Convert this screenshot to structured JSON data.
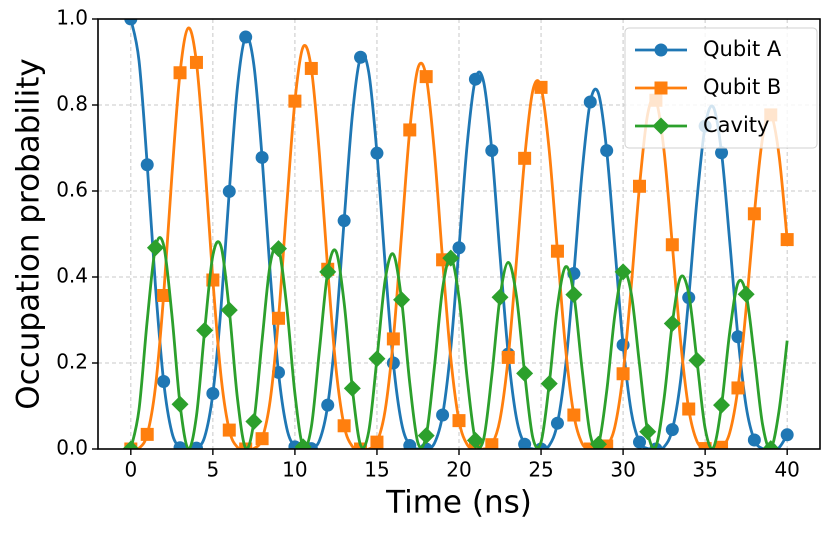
{
  "chart_data": {
    "type": "line",
    "xlabel": "Time (ns)",
    "ylabel": "Occupation probability",
    "xlim": [
      -2,
      42
    ],
    "ylim": [
      0,
      1
    ],
    "xticks": [
      0,
      5,
      10,
      15,
      20,
      25,
      30,
      35,
      40
    ],
    "yticks": [
      {
        "value": 0,
        "label": "0.0"
      },
      0.2,
      0.4,
      0.6,
      0.8,
      {
        "value": 1,
        "label": "1.0"
      }
    ],
    "grid": true,
    "legend": "upper right",
    "x": [
      0,
      0.5,
      1,
      1.5,
      2,
      2.5,
      3,
      3.5,
      4,
      4.5,
      5,
      5.5,
      6,
      6.5,
      7,
      7.5,
      8,
      8.5,
      9,
      9.5,
      10,
      10.5,
      11,
      11.5,
      12,
      12.5,
      13,
      13.5,
      14,
      14.5,
      15,
      15.5,
      16,
      16.5,
      17,
      17.5,
      18,
      18.5,
      19,
      19.5,
      20,
      20.5,
      21,
      21.5,
      22,
      22.5,
      23,
      23.5,
      24,
      24.5,
      25,
      25.5,
      26,
      26.5,
      27,
      27.5,
      28,
      28.5,
      29,
      29.5,
      30,
      30.5,
      31,
      31.5,
      32,
      32.5,
      33,
      33.5,
      34,
      34.5,
      35,
      35.5,
      36,
      36.5,
      37,
      37.5,
      38,
      38.5,
      39,
      39.5,
      40
    ],
    "series": [
      {
        "name": "Qubit A",
        "color": "#1f77b4",
        "marker": "circle",
        "markevery": 2,
        "values": [
          1,
          0.903,
          0.661,
          0.38,
          0.157,
          0.039,
          0.003,
          0,
          0.002,
          0.028,
          0.129,
          0.33,
          0.599,
          0.842,
          0.958,
          0.893,
          0.678,
          0.405,
          0.178,
          0.049,
          0.005,
          0,
          0.001,
          0.02,
          0.102,
          0.28,
          0.531,
          0.776,
          0.911,
          0.876,
          0.688,
          0.429,
          0.2,
          0.06,
          0.008,
          0,
          0,
          0.013,
          0.079,
          0.234,
          0.468,
          0.709,
          0.86,
          0.854,
          0.694,
          0.45,
          0.221,
          0.072,
          0.011,
          0,
          0,
          0.008,
          0.06,
          0.194,
          0.408,
          0.643,
          0.807,
          0.827,
          0.694,
          0.468,
          0.242,
          0.086,
          0.016,
          0.001,
          0,
          0.005,
          0.045,
          0.158,
          0.352,
          0.579,
          0.751,
          0.795,
          0.689,
          0.482,
          0.261,
          0.099,
          0.021,
          0.001,
          0,
          0.003,
          0.033
        ]
      },
      {
        "name": "Qubit B",
        "color": "#ff7f0e",
        "marker": "square",
        "markevery": 2,
        "values": [
          0,
          0.002,
          0.034,
          0.144,
          0.357,
          0.634,
          0.875,
          0.979,
          0.899,
          0.67,
          0.393,
          0.168,
          0.044,
          0.004,
          0,
          0.001,
          0.024,
          0.115,
          0.304,
          0.565,
          0.809,
          0.935,
          0.885,
          0.683,
          0.418,
          0.189,
          0.054,
          0.006,
          0,
          0,
          0.016,
          0.09,
          0.256,
          0.499,
          0.742,
          0.886,
          0.866,
          0.691,
          0.44,
          0.211,
          0.066,
          0.01,
          0,
          0,
          0.01,
          0.069,
          0.213,
          0.437,
          0.676,
          0.834,
          0.841,
          0.694,
          0.46,
          0.232,
          0.079,
          0.013,
          0,
          0,
          0.007,
          0.052,
          0.175,
          0.38,
          0.611,
          0.779,
          0.811,
          0.692,
          0.475,
          0.252,
          0.093,
          0.018,
          0.001,
          0,
          0.004,
          0.038,
          0.142,
          0.327,
          0.547,
          0.723,
          0.777,
          0.684,
          0.487
        ]
      },
      {
        "name": "Cavity",
        "color": "#2ca02c",
        "marker": "diamond",
        "markevery": 3,
        "values": [
          0,
          0.092,
          0.299,
          0.468,
          0.474,
          0.313,
          0.104,
          0.001,
          0.077,
          0.276,
          0.45,
          0.471,
          0.323,
          0.117,
          0.002,
          0.064,
          0.253,
          0.431,
          0.466,
          0.332,
          0.129,
          0.005,
          0.051,
          0.232,
          0.412,
          0.46,
          0.34,
          0.141,
          0.009,
          0.041,
          0.21,
          0.393,
          0.453,
          0.347,
          0.153,
          0.014,
          0.031,
          0.19,
          0.373,
          0.444,
          0.352,
          0.164,
          0.02,
          0.023,
          0.171,
          0.353,
          0.434,
          0.356,
          0.176,
          0.026,
          0.016,
          0.152,
          0.332,
          0.424,
          0.359,
          0.186,
          0.033,
          0.011,
          0.134,
          0.312,
          0.412,
          0.361,
          0.197,
          0.04,
          0.006,
          0.118,
          0.292,
          0.399,
          0.361,
          0.206,
          0.048,
          0.003,
          0.102,
          0.272,
          0.386,
          0.36,
          0.215,
          0.057,
          0.001,
          0.088,
          0.252
        ]
      }
    ]
  }
}
